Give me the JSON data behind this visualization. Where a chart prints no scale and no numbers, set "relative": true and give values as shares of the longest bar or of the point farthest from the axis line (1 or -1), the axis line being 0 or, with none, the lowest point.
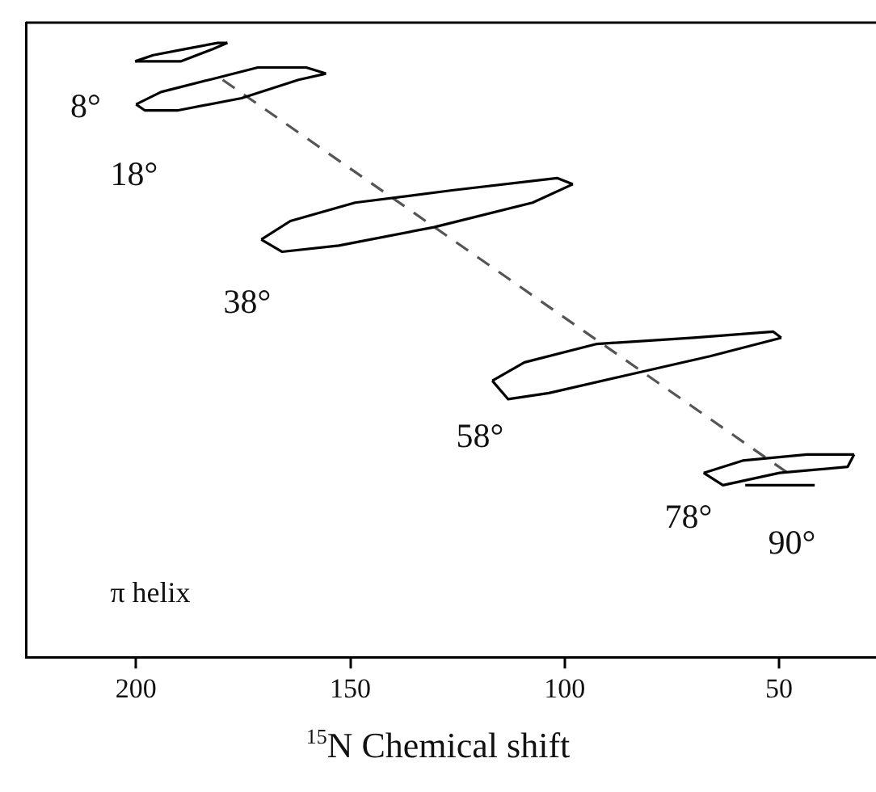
{
  "chart_data": {
    "type": "line",
    "xlabel": "$^{15}$N Chemical shift",
    "relative": true,
    "xlim": [
      225.7,
      27.4
    ],
    "xticks": [
      200,
      150,
      100,
      50
    ],
    "tick_labels": "x",
    "grid": false,
    "legend": false,
    "marker": "none",
    "line_style": "solid",
    "series": [
      {
        "color": "#000000",
        "x": [
          200.2,
          196.0,
          188.5,
          181.0,
          178.7
        ],
        "values": [
          0.97,
          0.98,
          0.99,
          1.0,
          1.0
        ]
      },
      {
        "color": "#000000",
        "x": [
          178.7,
          182.1,
          189.6,
          197.2,
          200.2
        ],
        "values": [
          1.0,
          0.99,
          0.97,
          0.97,
          0.97
        ]
      },
      {
        "color": "#000000",
        "x": [
          200.0,
          194.2,
          182.9,
          171.6,
          160.3,
          155.7
        ],
        "values": [
          0.9,
          0.92,
          0.94,
          0.96,
          0.96,
          0.95
        ]
      },
      {
        "color": "#000000",
        "x": [
          155.7,
          162.1,
          175.4,
          190.4,
          197.9,
          200.0
        ],
        "values": [
          0.95,
          0.94,
          0.91,
          0.89,
          0.89,
          0.9
        ]
      },
      {
        "color": "#000000",
        "x": [
          170.8,
          164.0,
          148.9,
          126.3,
          101.8,
          98.1
        ],
        "values": [
          0.68,
          0.71,
          0.74,
          0.76,
          0.78,
          0.77
        ]
      },
      {
        "color": "#000000",
        "x": [
          98.1,
          107.5,
          130.5,
          152.7,
          165.9,
          170.8
        ],
        "values": [
          0.77,
          0.74,
          0.7,
          0.67,
          0.66,
          0.68
        ]
      },
      {
        "color": "#000000",
        "x": [
          116.9,
          109.4,
          92.5,
          69.9,
          51.4,
          49.5
        ],
        "values": [
          0.45,
          0.48,
          0.51,
          0.52,
          0.53,
          0.52
        ]
      },
      {
        "color": "#000000",
        "x": [
          49.5,
          66.1,
          84.9,
          103.7,
          113.2,
          116.9
        ],
        "values": [
          0.52,
          0.49,
          0.46,
          0.43,
          0.42,
          0.45
        ]
      },
      {
        "color": "#000000",
        "x": [
          67.6,
          58.5,
          43.5,
          32.5
        ],
        "values": [
          0.3,
          0.32,
          0.33,
          0.33
        ]
      },
      {
        "color": "#000000",
        "x": [
          32.5,
          34.0,
          49.9,
          63.1,
          67.6
        ],
        "values": [
          0.33,
          0.31,
          0.3,
          0.28,
          0.3
        ]
      },
      {
        "color": "#000000",
        "x": [
          57.9,
          41.7
        ],
        "values": [
          0.28,
          0.28
        ]
      },
      {
        "color": "#555555",
        "line_style": "dashed",
        "x": [
          179.8,
          48.0
        ],
        "values": [
          0.94,
          0.3
        ]
      }
    ],
    "annotations": [
      "8°",
      "18°",
      "38°",
      "58°",
      "78°",
      "90°",
      "π helix"
    ]
  }
}
